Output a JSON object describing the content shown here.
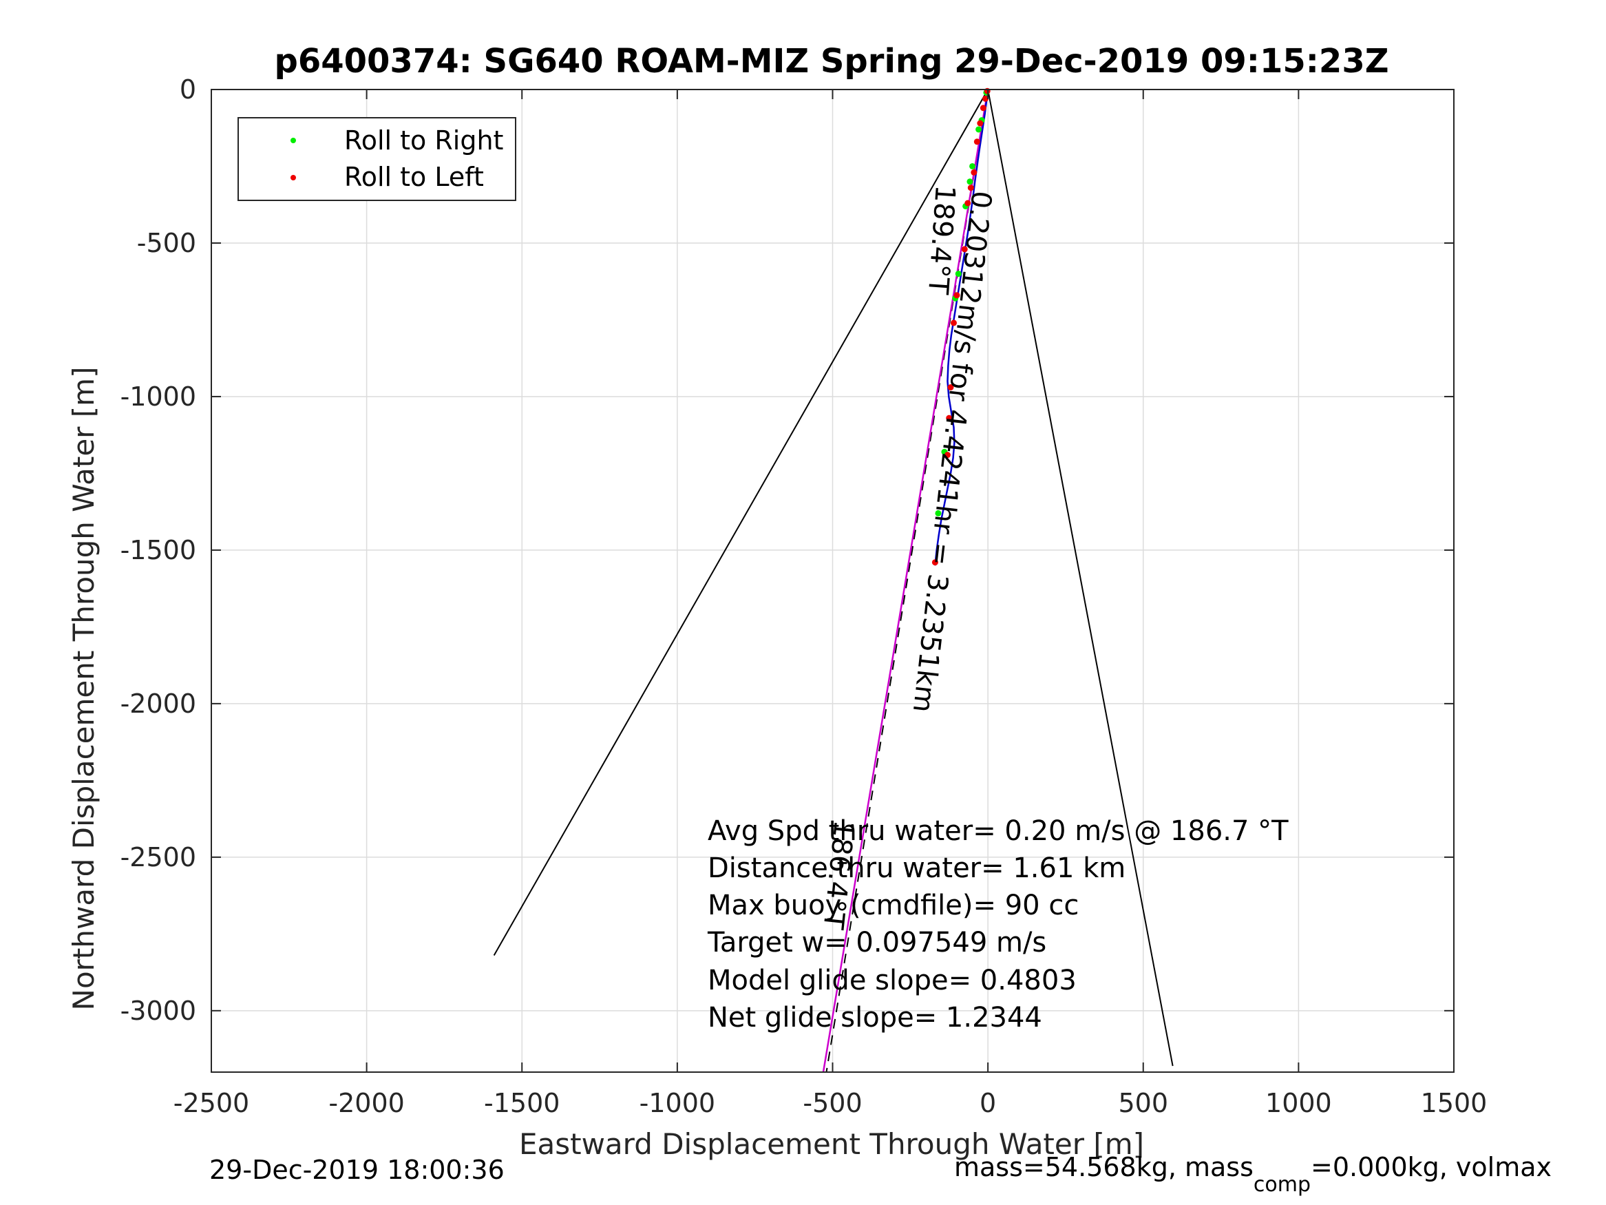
{
  "chart_data": {
    "type": "line",
    "title": "p6400374: SG640 ROAM-MIZ Spring 29-Dec-2019 09:15:23Z",
    "xlabel": "Eastward Displacement Through Water [m]",
    "ylabel": "Northward Displacement Through Water [m]",
    "xlim": [
      -2500,
      1500
    ],
    "ylim": [
      -3200,
      0
    ],
    "xticks": [
      "-2500",
      "-2000",
      "-1500",
      "-1000",
      "-500",
      "0",
      "500",
      "1000",
      "1500"
    ],
    "yticks": [
      "0",
      "-500",
      "-1000",
      "-1500",
      "-2000",
      "-2500",
      "-3000"
    ],
    "xtick_values": [
      -2500,
      -2000,
      -1500,
      -1000,
      -500,
      0,
      500,
      1000,
      1500
    ],
    "ytick_values": [
      0,
      -500,
      -1000,
      -1500,
      -2000,
      -2500,
      -3000
    ],
    "grid": true,
    "legend": {
      "placement": "top-left",
      "entries": [
        {
          "label": "Roll to Right",
          "color": "#00ee00"
        },
        {
          "label": "Roll to Left",
          "color": "#ee0000"
        }
      ]
    },
    "track": {
      "color": "#0000cc",
      "x": [
        0,
        -5,
        -10,
        -16,
        -22,
        -28,
        -35,
        -42,
        -48,
        -55,
        -62,
        -70,
        -78,
        -86,
        -94,
        -102,
        -110,
        -118,
        -124,
        -128,
        -130,
        -126,
        -118,
        -110,
        -108,
        -112,
        -120,
        -130,
        -140,
        -150,
        -158,
        -165,
        -170
      ],
      "y": [
        0,
        -40,
        -80,
        -120,
        -160,
        -200,
        -250,
        -300,
        -350,
        -400,
        -450,
        -500,
        -550,
        -600,
        -650,
        -700,
        -750,
        -800,
        -850,
        -900,
        -950,
        -1000,
        -1050,
        -1100,
        -1150,
        -1200,
        -1250,
        -1300,
        -1350,
        -1400,
        -1450,
        -1500,
        -1550
      ]
    },
    "roll_right": {
      "color": "#00ee00",
      "x": [
        -5,
        -20,
        -30,
        -50,
        -58,
        -72,
        -95,
        -105,
        -140,
        -160
      ],
      "y": [
        -10,
        -100,
        -130,
        -250,
        -300,
        -380,
        -600,
        -680,
        -1180,
        -1380
      ]
    },
    "roll_left": {
      "color": "#ee0000",
      "x": [
        -2,
        -8,
        -15,
        -25,
        -35,
        -45,
        -55,
        -65,
        -75,
        -100,
        -110,
        -120,
        -125,
        -130,
        -170
      ],
      "y": [
        -5,
        -30,
        -60,
        -110,
        -170,
        -270,
        -320,
        -370,
        -520,
        -670,
        -760,
        -970,
        -1070,
        -1190,
        -1540
      ]
    },
    "heading_line": {
      "color": "#cc00cc",
      "x": [
        0,
        -530
      ],
      "y": [
        0,
        -3200
      ],
      "label": "189.4°T"
    },
    "cone_lines": {
      "color": "#000000",
      "left": {
        "x": [
          0,
          -1590
        ],
        "y": [
          0,
          -2820
        ]
      },
      "right": {
        "x": [
          0,
          595
        ],
        "y": [
          0,
          -3180
        ]
      },
      "dashed_x": [
        0,
        -520
      ],
      "dashed_y": [
        0,
        -3200
      ]
    },
    "annotations": [
      {
        "text": "189.4°T",
        "x": -175,
        "y": -300
      },
      {
        "text": "0.20312m/s for 4.4241hr = 3.2351km",
        "x": -40,
        "y": -330
      },
      {
        "text": "186.4°T",
        "x": -480,
        "y": -2420
      }
    ],
    "info_lines": [
      "Avg Spd thru water=  0.20 m/s @ 186.7 °T",
      "Distance thru water=  1.61 km",
      "Max buoy (cmdfile)= 90 cc",
      "Target w= 0.097549 m/s",
      "Model glide slope= 0.4803",
      "Net glide slope= 1.2344"
    ]
  },
  "footer": {
    "left": "29-Dec-2019 18:00:36",
    "right_prefix": "mass=54.568kg, mass",
    "right_sub": "comp",
    "right_suffix": "=0.000kg, volmax"
  }
}
